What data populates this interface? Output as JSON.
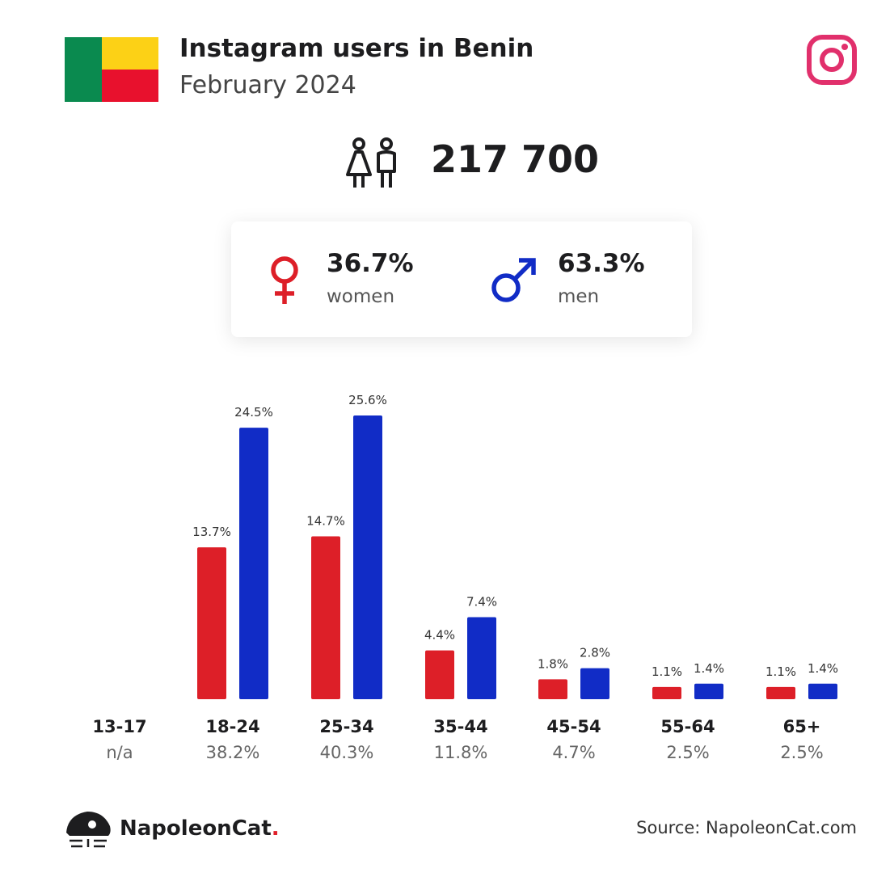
{
  "header": {
    "title": "Instagram users in Benin",
    "subtitle": "February 2024"
  },
  "flag_colors": [
    "#0a8a4f",
    "#fcd116",
    "#e8112d"
  ],
  "total": {
    "icon": "users-icon",
    "value": "217 700"
  },
  "gender": {
    "women": {
      "pct": "36.7%",
      "label": "women",
      "icon": "female-symbol-icon",
      "color": "#dd1f28"
    },
    "men": {
      "pct": "63.3%",
      "label": "men",
      "icon": "male-symbol-icon",
      "color": "#112cc6"
    }
  },
  "chart_data": {
    "type": "bar",
    "categories": [
      "13-17",
      "18-24",
      "25-34",
      "35-44",
      "45-54",
      "55-64",
      "65+"
    ],
    "totals": [
      "n/a",
      "38.2%",
      "40.3%",
      "11.8%",
      "4.7%",
      "2.5%",
      "2.5%"
    ],
    "series": [
      {
        "name": "women",
        "color": "#dd1f28",
        "values": [
          null,
          13.7,
          14.7,
          4.4,
          1.8,
          1.1,
          1.1
        ],
        "labels": [
          "",
          "13.7%",
          "14.7%",
          "4.4%",
          "1.8%",
          "1.1%",
          "1.1%"
        ]
      },
      {
        "name": "men",
        "color": "#112cc6",
        "values": [
          null,
          24.5,
          25.6,
          7.4,
          2.8,
          1.4,
          1.4
        ],
        "labels": [
          "",
          "24.5%",
          "25.6%",
          "7.4%",
          "2.8%",
          "1.4%",
          "1.4%"
        ]
      }
    ],
    "ylim": [
      0,
      25.6
    ],
    "grid": false
  },
  "footer": {
    "brand": "NapoleonCat",
    "brand_dot": ".",
    "source": "Source: NapoleonCat.com"
  }
}
